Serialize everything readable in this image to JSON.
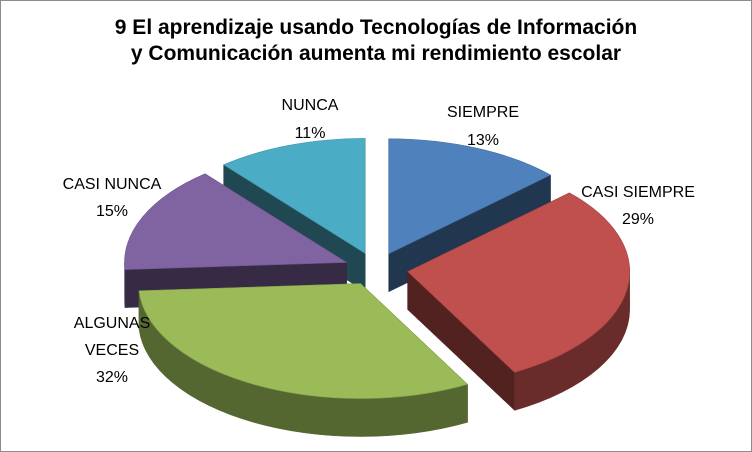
{
  "chart_data": {
    "type": "pie",
    "style": "3d-exploded",
    "title_lines": [
      "9 El aprendizaje usando Tecnologías de Información",
      "y Comunicación aumenta mi rendimiento escolar"
    ],
    "slices": [
      {
        "label": "SIEMPRE",
        "value": 13,
        "value_label": "13%",
        "color": "#4f81bd"
      },
      {
        "label": "CASI SIEMPRE",
        "value": 29,
        "value_label": "29%",
        "color": "#c0504d"
      },
      {
        "label": "ALGUNAS VECES",
        "value": 32,
        "value_label": "32%",
        "color": "#9bbb59"
      },
      {
        "label": "CASI NUNCA",
        "value": 15,
        "value_label": "15%",
        "color": "#8064a2"
      },
      {
        "label": "NUNCA",
        "value": 11,
        "value_label": "11%",
        "color": "#4bacc6"
      }
    ],
    "legend": "none"
  }
}
